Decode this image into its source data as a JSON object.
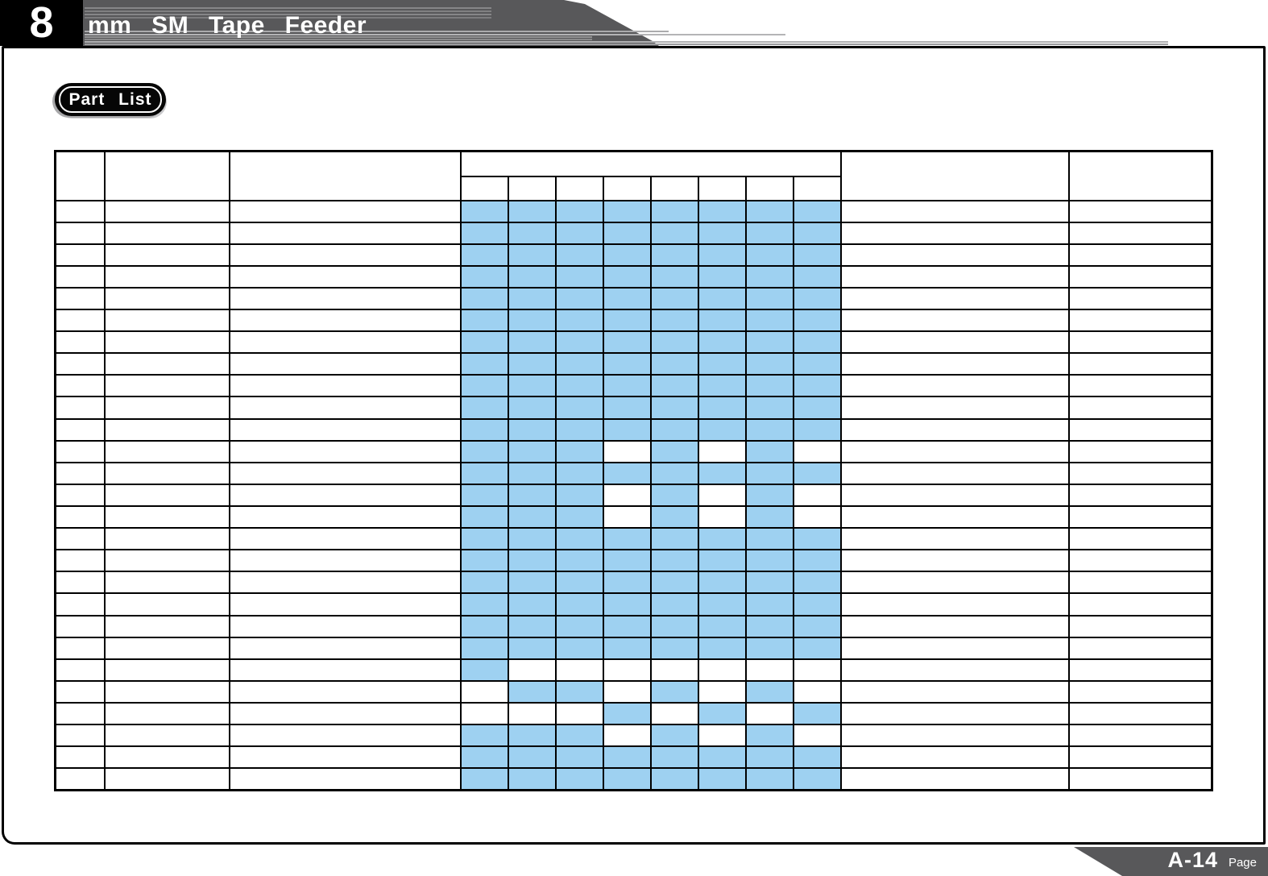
{
  "header": {
    "number": "8",
    "title": "mm SM Tape Feeder",
    "bar_color": "#58585a",
    "number_box_color": "#000000",
    "text_color": "#ffffff"
  },
  "badge": {
    "label": "Part List"
  },
  "table": {
    "mid_column_count": 8,
    "body_row_count": 27,
    "highlight_color": "#9ed1f1",
    "border_color": "#000000",
    "grid_pattern": [
      "11111111",
      "11111111",
      "11111111",
      "11111111",
      "11111111",
      "11111111",
      "11111111",
      "11111111",
      "11111111",
      "11111111",
      "11111111",
      "11101010",
      "11111111",
      "11101010",
      "11101010",
      "11111111",
      "11111111",
      "11111111",
      "11111111",
      "11111111",
      "11111111",
      "10000000",
      "01101010",
      "00010101",
      "11101010",
      "11111111",
      "11111111"
    ]
  },
  "footer": {
    "page_number": "A-14",
    "page_label": "Page",
    "bar_color": "#58585a"
  }
}
